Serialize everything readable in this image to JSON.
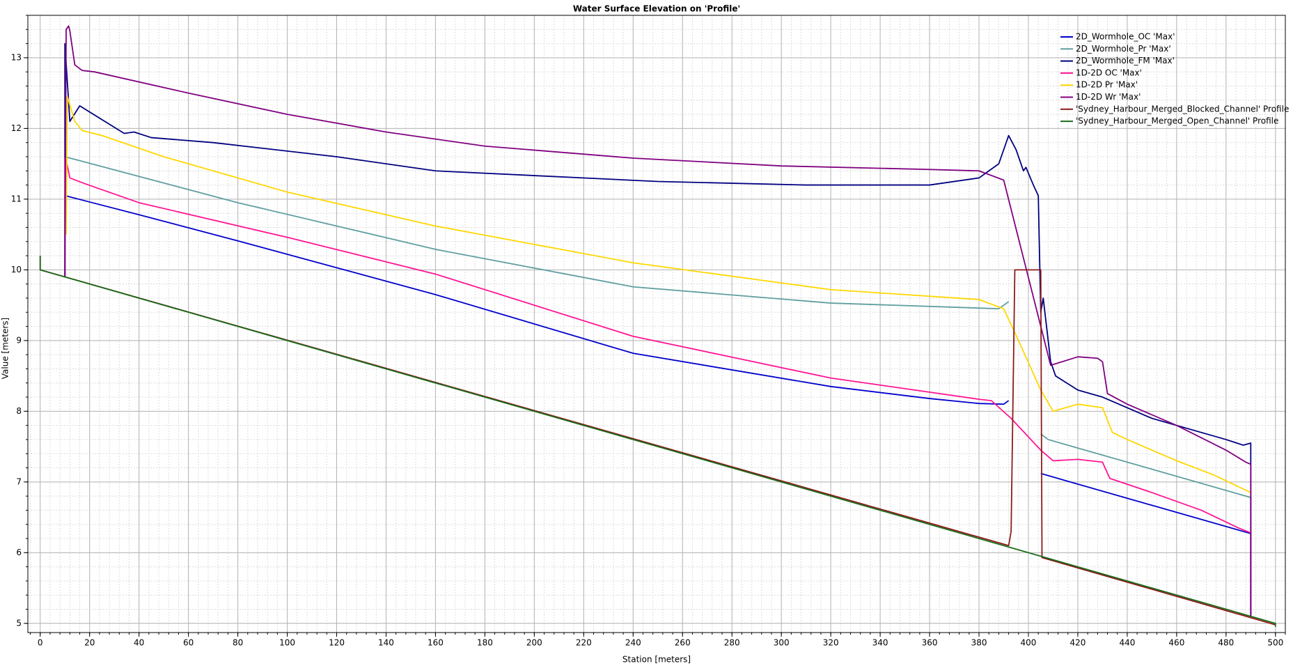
{
  "chart_data": {
    "type": "line",
    "title": "Water Surface Elevation on 'Profile'",
    "x_label": "Station [meters]",
    "y_label": "Value [meters]",
    "xlim": [
      -5,
      504
    ],
    "ylim": [
      4.87,
      13.6
    ],
    "xticks": [
      0,
      20,
      40,
      60,
      80,
      100,
      120,
      140,
      160,
      180,
      200,
      220,
      240,
      260,
      280,
      300,
      320,
      340,
      360,
      380,
      400,
      420,
      440,
      460,
      480,
      500
    ],
    "yticks": [
      5,
      6,
      7,
      8,
      9,
      10,
      11,
      12,
      13
    ],
    "grid": true,
    "minor_grid": true,
    "legend": "upper right",
    "series": [
      {
        "name": "2D_Wormhole_OC 'Max'",
        "color": "#0000cd",
        "x": [
          10,
          10,
          40,
          80,
          160,
          240,
          320,
          360,
          380,
          390,
          392,
          null,
          405,
          490,
          490
        ],
        "values": [
          9.9,
          11.05,
          10.78,
          10.41,
          9.65,
          8.82,
          8.35,
          8.18,
          8.11,
          8.1,
          8.15,
          null,
          7.12,
          6.27,
          5.1
        ]
      },
      {
        "name": "2D_Wormhole_Pr 'Max'",
        "color": "#5f9ea0",
        "x": [
          10,
          10,
          80,
          160,
          240,
          320,
          388,
          390,
          392,
          null,
          405,
          408,
          490,
          490
        ],
        "values": [
          9.9,
          11.6,
          10.95,
          10.29,
          9.76,
          9.53,
          9.45,
          9.5,
          9.55,
          null,
          7.68,
          7.6,
          6.78,
          5.1
        ]
      },
      {
        "name": "2D_Wormhole_FM 'Max'",
        "color": "#000080",
        "x": [
          10,
          10,
          12,
          16,
          34,
          38,
          45,
          70,
          120,
          160,
          250,
          310,
          360,
          380,
          388,
          392,
          395,
          398,
          399,
          402,
          404,
          405,
          406,
          409,
          411,
          420,
          430,
          450,
          480,
          487,
          490,
          490
        ],
        "values": [
          9.9,
          13.2,
          12.1,
          12.32,
          11.93,
          11.95,
          11.87,
          11.8,
          11.6,
          11.4,
          11.25,
          11.2,
          11.2,
          11.3,
          11.5,
          11.9,
          11.7,
          11.4,
          11.45,
          11.2,
          11.05,
          9.4,
          9.6,
          8.7,
          8.5,
          8.3,
          8.2,
          7.9,
          7.6,
          7.52,
          7.55,
          5.1
        ]
      },
      {
        "name": "1D-2D OC 'Max'",
        "color": "#ff1493",
        "x": [
          10,
          10,
          10.5,
          12,
          18,
          40,
          100,
          160,
          240,
          320,
          380,
          385,
          393,
          405,
          410,
          420,
          430,
          431,
          433,
          450,
          470,
          485,
          490,
          490
        ],
        "values": [
          9.9,
          11.58,
          11.55,
          11.3,
          11.22,
          10.95,
          10.46,
          9.94,
          9.06,
          8.47,
          8.17,
          8.15,
          7.9,
          7.45,
          7.3,
          7.32,
          7.28,
          7.2,
          7.05,
          6.85,
          6.6,
          6.35,
          6.28,
          5.2
        ]
      },
      {
        "name": "1D-2D Pr 'Max'",
        "color": "#ffd700",
        "x": [
          10.5,
          11,
          14,
          17,
          25,
          50,
          100,
          160,
          240,
          320,
          380,
          390,
          396,
          405,
          410,
          420,
          430,
          434,
          440,
          460,
          475,
          490
        ],
        "values": [
          10.5,
          12.45,
          12.1,
          11.97,
          11.9,
          11.6,
          11.1,
          10.62,
          10.1,
          9.72,
          9.58,
          9.45,
          9.0,
          8.3,
          8.0,
          8.1,
          8.05,
          7.7,
          7.6,
          7.3,
          7.1,
          6.85
        ]
      },
      {
        "name": "1D-2D Wr 'Max'",
        "color": "#800080",
        "x": [
          10,
          10.5,
          11.5,
          12,
          14,
          17,
          22,
          60,
          100,
          140,
          180,
          240,
          300,
          360,
          380,
          390,
          409,
          420,
          428,
          430,
          432,
          440,
          460,
          480,
          488,
          490,
          490
        ],
        "values": [
          9.9,
          13.4,
          13.45,
          13.38,
          12.9,
          12.82,
          12.8,
          12.5,
          12.2,
          11.95,
          11.75,
          11.58,
          11.47,
          11.42,
          11.4,
          11.27,
          8.65,
          8.77,
          8.75,
          8.7,
          8.25,
          8.1,
          7.8,
          7.45,
          7.28,
          7.25,
          5.1
        ]
      },
      {
        "name": "'Sydney_Harbour_Merged_Blocked_Channel' Profile",
        "color": "#8b1a1a",
        "x": [
          0,
          0,
          392,
          393,
          394.5,
          405,
          405.5,
          500
        ],
        "values": [
          10.2,
          10,
          6.1,
          6.3,
          10,
          10,
          5.93,
          4.98
        ]
      },
      {
        "name": "'Sydney_Harbour_Merged_Open_Channel' Profile",
        "color": "#1a6b1a",
        "x": [
          0,
          0,
          500,
          500
        ],
        "values": [
          10.2,
          10,
          5.0,
          4.95
        ]
      }
    ]
  }
}
